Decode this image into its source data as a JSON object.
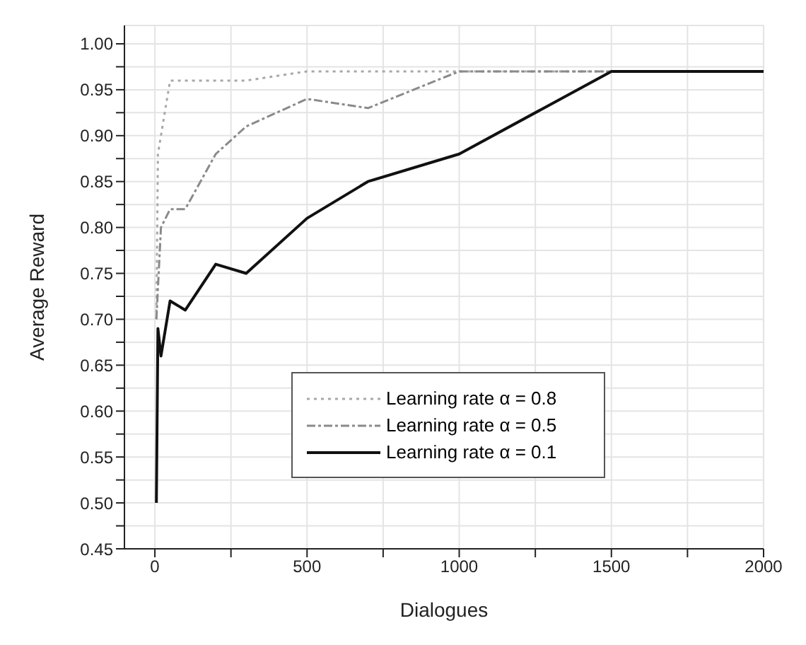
{
  "chart_data": {
    "type": "line",
    "xlabel": "Dialogues",
    "ylabel": "Average Reward",
    "xlim": [
      -100,
      2000
    ],
    "ylim": [
      0.45,
      1.02
    ],
    "xticks": [
      0,
      {
        "value": 250,
        "label": null
      },
      500,
      {
        "value": 750,
        "label": null
      },
      1000,
      {
        "value": 1250,
        "label": null
      },
      1500,
      {
        "value": 1750,
        "label": null
      },
      2000
    ],
    "yticks": [
      {
        "value": 0.45,
        "label": "0.45"
      },
      {
        "value": 0.475,
        "label": null
      },
      {
        "value": 0.5,
        "label": "0.50"
      },
      {
        "value": 0.525,
        "label": null
      },
      {
        "value": 0.55,
        "label": "0.55"
      },
      {
        "value": 0.575,
        "label": null
      },
      {
        "value": 0.6,
        "label": "0.60"
      },
      {
        "value": 0.625,
        "label": null
      },
      {
        "value": 0.65,
        "label": "0.65"
      },
      {
        "value": 0.675,
        "label": null
      },
      {
        "value": 0.7,
        "label": "0.70"
      },
      {
        "value": 0.725,
        "label": null
      },
      {
        "value": 0.75,
        "label": "0.75"
      },
      {
        "value": 0.775,
        "label": null
      },
      {
        "value": 0.8,
        "label": "0.80"
      },
      {
        "value": 0.825,
        "label": null
      },
      {
        "value": 0.85,
        "label": "0.85"
      },
      {
        "value": 0.875,
        "label": null
      },
      {
        "value": 0.9,
        "label": "0.90"
      },
      {
        "value": 0.925,
        "label": null
      },
      {
        "value": 0.95,
        "label": "0.95"
      },
      {
        "value": 0.975,
        "label": null
      },
      {
        "value": 1.0,
        "label": "1.00"
      }
    ],
    "grid": true,
    "legend": "bottom right",
    "marker": "none",
    "series": [
      {
        "name": "Learning rate α = 0.8",
        "color": "#a8a8a8",
        "line_style": "dotted",
        "x": [
          5,
          10,
          50,
          300,
          500,
          1500
        ],
        "values": [
          0.7,
          0.88,
          0.96,
          0.96,
          0.97,
          0.97
        ]
      },
      {
        "name": "Learning rate α = 0.5",
        "color": "#8a8a8a",
        "line_style": "dashed",
        "x": [
          5,
          20,
          50,
          100,
          200,
          300,
          500,
          700,
          1000,
          1500
        ],
        "values": [
          0.7,
          0.8,
          0.82,
          0.82,
          0.88,
          0.91,
          0.94,
          0.93,
          0.97,
          0.97
        ]
      },
      {
        "name": "Learning rate α = 0.1",
        "color": "#111111",
        "line_style": "solid",
        "x": [
          5,
          10,
          20,
          50,
          100,
          200,
          300,
          500,
          700,
          1000,
          1500,
          2000
        ],
        "values": [
          0.5,
          0.69,
          0.66,
          0.72,
          0.71,
          0.76,
          0.75,
          0.81,
          0.85,
          0.88,
          0.97,
          0.97
        ]
      }
    ]
  }
}
